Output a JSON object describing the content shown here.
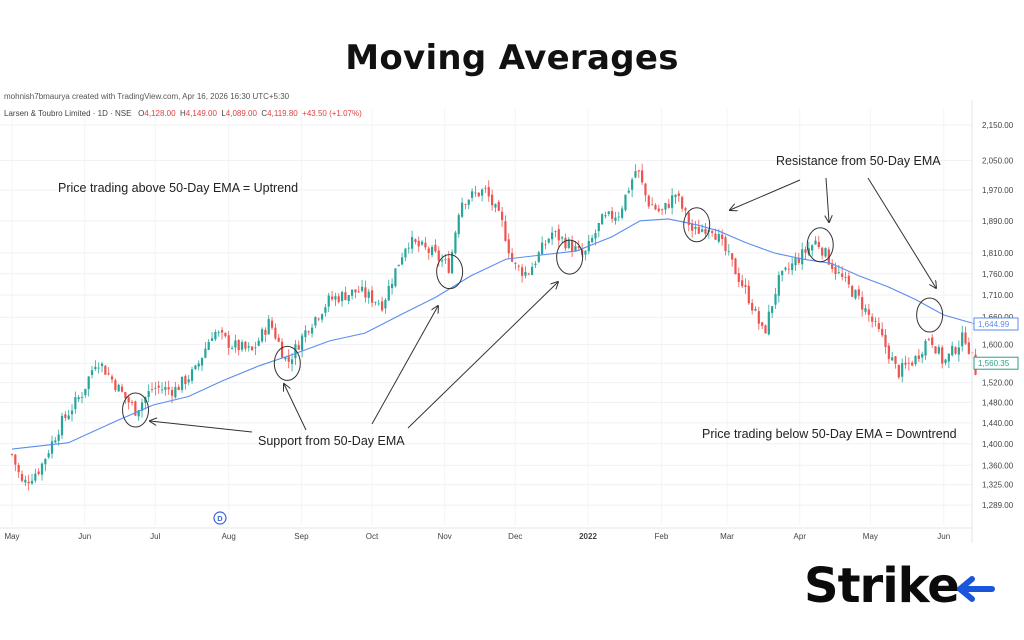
{
  "header": {
    "title": "Moving Averages"
  },
  "meta": {
    "credit": "mohnish7bmaurya created with TradingView.com, Apr 16, 2026 16:30 UTC+5:30",
    "instrument": "Larsen & Toubro Limited · 1D · NSE",
    "ohlc": [
      {
        "label": "O",
        "value": "4,128.00"
      },
      {
        "label": "H",
        "value": "4,149.00"
      },
      {
        "label": "L",
        "value": "4,089.00"
      },
      {
        "label": "C",
        "value": "4,119.80"
      }
    ],
    "change": "+43.50 (+1.07%)"
  },
  "annotations": {
    "uptrend": "Price trading above 50-Day EMA = Uptrend",
    "support": "Support from 50-Day EMA",
    "resistance": "Resistance from 50-Day EMA",
    "downtrend": "Price trading below 50-Day EMA = Downtrend"
  },
  "logo": {
    "text": "Strike",
    "accent": "#1a56db"
  },
  "chart_data": {
    "type": "candlestick",
    "y_scale": "log",
    "ylim": [
      1255,
      2200
    ],
    "y_ticks": [
      1289,
      1325,
      1360,
      1400,
      1440,
      1480,
      1520,
      1560,
      1600,
      1660,
      1710,
      1760,
      1810,
      1890,
      1970,
      2050,
      2150
    ],
    "y_tick_labels": [
      "1,289.00",
      "1,325.00",
      "1,360.00",
      "1,400.00",
      "1,440.00",
      "1,480.00",
      "1,520.00",
      "1,560.00",
      "1,600.00",
      "1,660.00",
      "1,710.00",
      "1,760.00",
      "1,810.00",
      "1,890.00",
      "1,970.00",
      "2,050.00",
      "2,150.00"
    ],
    "x_ticks": [
      {
        "label": "May",
        "t": 0.0
      },
      {
        "label": "Jun",
        "t": 1.03
      },
      {
        "label": "Jul",
        "t": 2.03
      },
      {
        "label": "Aug",
        "t": 3.07
      },
      {
        "label": "Sep",
        "t": 4.1
      },
      {
        "label": "Oct",
        "t": 5.1
      },
      {
        "label": "Nov",
        "t": 6.13
      },
      {
        "label": "Dec",
        "t": 7.13
      },
      {
        "label": "2022",
        "t": 8.16
      },
      {
        "label": "Feb",
        "t": 9.2
      },
      {
        "label": "Mar",
        "t": 10.13
      },
      {
        "label": "Apr",
        "t": 11.16
      },
      {
        "label": "May",
        "t": 12.16
      },
      {
        "label": "Jun",
        "t": 13.2
      }
    ],
    "x_end": 13.65,
    "price_path": [
      [
        0,
        1380
      ],
      [
        0.15,
        1325
      ],
      [
        0.4,
        1355
      ],
      [
        0.7,
        1440
      ],
      [
        1.0,
        1500
      ],
      [
        1.2,
        1570
      ],
      [
        1.6,
        1490
      ],
      [
        1.75,
        1465
      ],
      [
        2.0,
        1510
      ],
      [
        2.3,
        1505
      ],
      [
        2.6,
        1545
      ],
      [
        2.85,
        1630
      ],
      [
        3.1,
        1600
      ],
      [
        3.4,
        1585
      ],
      [
        3.65,
        1650
      ],
      [
        3.9,
        1560
      ],
      [
        4.2,
        1640
      ],
      [
        4.5,
        1700
      ],
      [
        4.9,
        1720
      ],
      [
        5.25,
        1690
      ],
      [
        5.6,
        1840
      ],
      [
        5.95,
        1810
      ],
      [
        6.2,
        1775
      ],
      [
        6.35,
        1940
      ],
      [
        6.7,
        1970
      ],
      [
        6.95,
        1880
      ],
      [
        7.1,
        1780
      ],
      [
        7.3,
        1760
      ],
      [
        7.65,
        1860
      ],
      [
        7.9,
        1830
      ],
      [
        8.1,
        1800
      ],
      [
        8.35,
        1890
      ],
      [
        8.6,
        1910
      ],
      [
        8.85,
        2030
      ],
      [
        9.0,
        1940
      ],
      [
        9.2,
        1910
      ],
      [
        9.4,
        1960
      ],
      [
        9.65,
        1860
      ],
      [
        9.9,
        1880
      ],
      [
        10.15,
        1800
      ],
      [
        10.45,
        1700
      ],
      [
        10.65,
        1620
      ],
      [
        10.85,
        1740
      ],
      [
        11.1,
        1790
      ],
      [
        11.4,
        1840
      ],
      [
        11.7,
        1760
      ],
      [
        12.0,
        1700
      ],
      [
        12.3,
        1620
      ],
      [
        12.55,
        1540
      ],
      [
        12.8,
        1570
      ],
      [
        13.0,
        1620
      ],
      [
        13.2,
        1560
      ],
      [
        13.5,
        1620
      ],
      [
        13.65,
        1545
      ]
    ],
    "series": [
      {
        "name": "50-Day EMA",
        "color": "#5b8def",
        "points": [
          [
            0,
            1390
          ],
          [
            0.8,
            1402
          ],
          [
            1.5,
            1445
          ],
          [
            2.0,
            1475
          ],
          [
            2.5,
            1492
          ],
          [
            3.0,
            1525
          ],
          [
            3.5,
            1555
          ],
          [
            4.0,
            1580
          ],
          [
            4.5,
            1608
          ],
          [
            5.0,
            1625
          ],
          [
            5.5,
            1665
          ],
          [
            6.0,
            1705
          ],
          [
            6.5,
            1755
          ],
          [
            7.0,
            1795
          ],
          [
            7.5,
            1805
          ],
          [
            8.0,
            1815
          ],
          [
            8.5,
            1850
          ],
          [
            8.9,
            1890
          ],
          [
            9.3,
            1895
          ],
          [
            9.7,
            1880
          ],
          [
            10.0,
            1865
          ],
          [
            10.4,
            1835
          ],
          [
            10.8,
            1810
          ],
          [
            11.2,
            1795
          ],
          [
            11.6,
            1785
          ],
          [
            12.0,
            1755
          ],
          [
            12.4,
            1730
          ],
          [
            12.8,
            1700
          ],
          [
            13.2,
            1665
          ],
          [
            13.65,
            1645
          ]
        ]
      }
    ],
    "price_labels": [
      {
        "value": 1644.99,
        "text": "1,644.99",
        "color": "#5b8def"
      },
      {
        "value": 1560.35,
        "text": "1,560.35",
        "color": "#2aa08a"
      }
    ],
    "circles": [
      {
        "t": 1.75,
        "price": 1465
      },
      {
        "t": 3.9,
        "price": 1560
      },
      {
        "t": 6.2,
        "price": 1765
      },
      {
        "t": 7.9,
        "price": 1800
      },
      {
        "t": 9.7,
        "price": 1880
      },
      {
        "t": 11.45,
        "price": 1830
      },
      {
        "t": 13.0,
        "price": 1665
      }
    ],
    "event_marker": "D",
    "colors": {
      "up": "#26a69a",
      "down": "#ef5350"
    }
  }
}
